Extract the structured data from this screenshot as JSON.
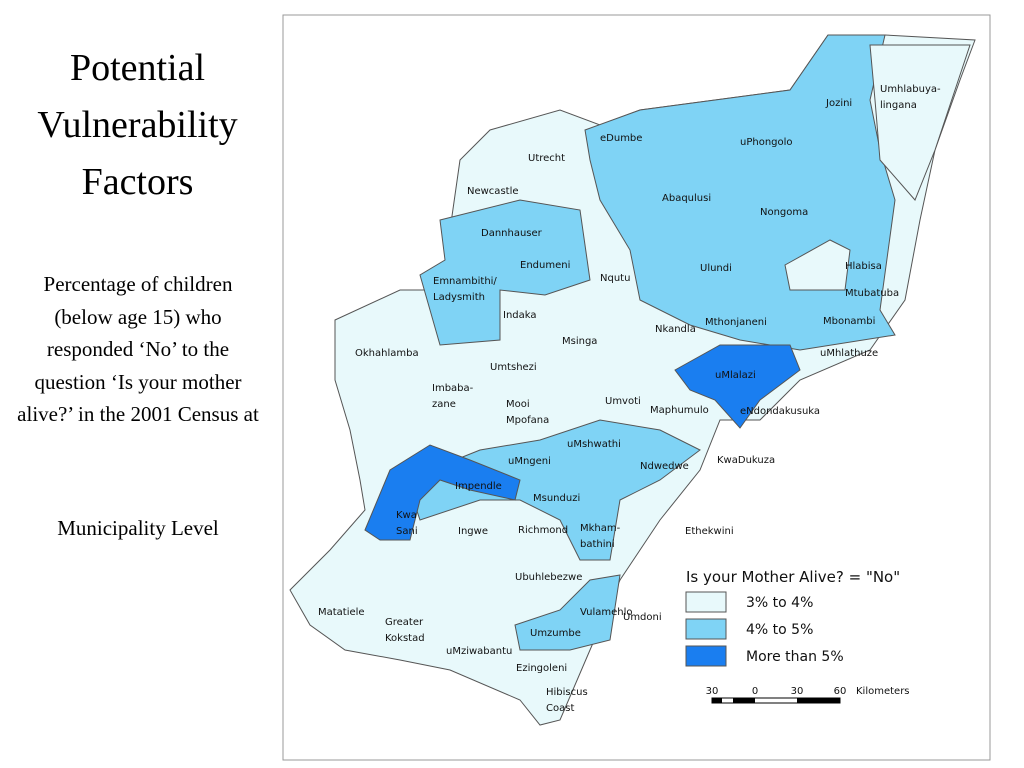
{
  "title": "Potential Vulnerability Factors",
  "description": "Percentage of children (below age 15) who responded ‘No’ to the question ‘Is your mother alive?’ in the 2001 Census at",
  "description_end": "Municipality Level",
  "map": {
    "municipalities": [
      "Jozini",
      [
        "Umhlabuya-",
        "lingana"
      ],
      "eDumbe",
      "uPhongolo",
      "Utrecht",
      "Newcastle",
      "Abaqulusi",
      "Nongoma",
      "Dannhauser",
      "Endumeni",
      "Nqutu",
      "Ulundi",
      "Hlabisa",
      "Mtubatuba",
      [
        "Emnambithi/",
        "Ladysmith"
      ],
      "Indaka",
      "Msinga",
      "Nkandla",
      "Mthonjaneni",
      "Mbonambi",
      "Okhahlamba",
      "Umtshezi",
      "uMhlathuze",
      "uMlalazi",
      [
        "Imbaba-",
        "zane"
      ],
      [
        "Mooi",
        "Mpofana"
      ],
      "Umvoti",
      "Maphumulo",
      "eNdondakusuka",
      "uMshwathi",
      "Ndwedwe",
      "KwaDukuza",
      "uMngeni",
      "Impendle",
      [
        "Kwa",
        "Sani"
      ],
      "Ingwe",
      "Richmond",
      "Msunduzi",
      [
        "Mkham-",
        "bathini"
      ],
      "Ethekwini",
      "Ubuhlebezwe",
      "Vulamehlo",
      "Umdoni",
      "Matatiele",
      [
        "Greater",
        "Kokstad"
      ],
      "Umzumbe",
      "uMziwabantu",
      "Ezingoleni",
      [
        "Hibiscus",
        "Coast"
      ]
    ],
    "legend": {
      "title": "Is your Mother Alive? = \"No\"",
      "items": [
        "3% to 4%",
        "4% to 5%",
        "More than 5%"
      ]
    },
    "scale": {
      "ticks": [
        "30",
        "0",
        "30",
        "60"
      ],
      "unit": "Kilometers"
    }
  }
}
